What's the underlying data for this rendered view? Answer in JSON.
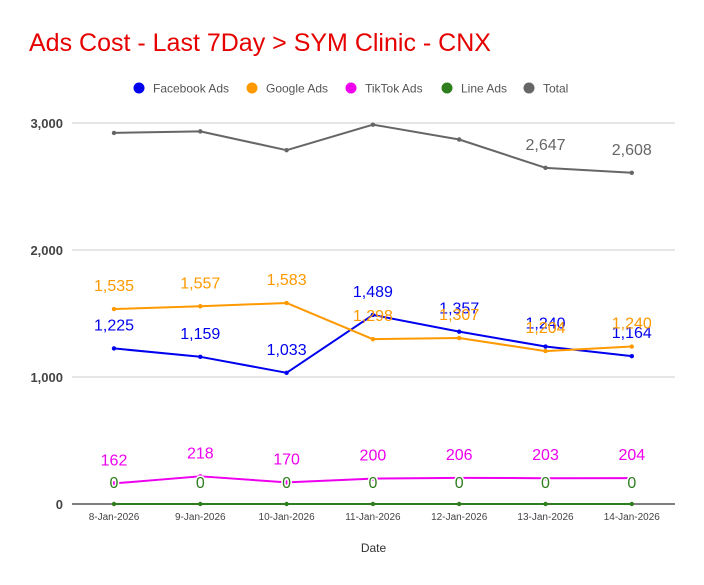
{
  "title": "Ads Cost - Last 7Day > SYM Clinic - CNX",
  "chart_data": {
    "type": "line",
    "title": "Ads Cost - Last 7Day > SYM Clinic - CNX",
    "xlabel": "Date",
    "ylabel": "",
    "ylim": [
      0,
      3000
    ],
    "yticks": [
      0,
      1000,
      2000,
      3000
    ],
    "ytick_labels": [
      "0",
      "1,000",
      "2,000",
      "3,000"
    ],
    "grid": true,
    "legend": "top",
    "categories": [
      "8-Jan-2026",
      "9-Jan-2026",
      "10-Jan-2026",
      "11-Jan-2026",
      "12-Jan-2026",
      "13-Jan-2026",
      "14-Jan-2026"
    ],
    "series": [
      {
        "name": "Facebook Ads",
        "color": "#0000ee",
        "values": [
          1225,
          1159,
          1033,
          1489,
          1357,
          1240,
          1164
        ],
        "labels": [
          "1,225",
          "1,159",
          "1,033",
          "1,489",
          "1,357",
          "1,240",
          "1,164"
        ]
      },
      {
        "name": "Google Ads",
        "color": "#ff9900",
        "values": [
          1535,
          1557,
          1583,
          1298,
          1307,
          1204,
          1240
        ],
        "labels": [
          "1,535",
          "1,557",
          "1,583",
          "1,298",
          "1,307",
          "1,204",
          "1,240"
        ]
      },
      {
        "name": "TikTok Ads",
        "color": "#ee00ee",
        "values": [
          162,
          218,
          170,
          200,
          206,
          203,
          204
        ],
        "labels": [
          "162",
          "218",
          "170",
          "200",
          "206",
          "203",
          "204"
        ]
      },
      {
        "name": "Line Ads",
        "color": "#2e7d1e",
        "values": [
          0,
          0,
          0,
          0,
          0,
          0,
          0
        ],
        "labels": [
          "0",
          "0",
          "0",
          "0",
          "0",
          "0",
          "0"
        ]
      },
      {
        "name": "Total",
        "color": "#666666",
        "values": [
          2922,
          2934,
          2786,
          2987,
          2870,
          2647,
          2608
        ],
        "labels": [
          "",
          "",
          "",
          "",
          "",
          "2,647",
          "2,608"
        ]
      }
    ]
  }
}
